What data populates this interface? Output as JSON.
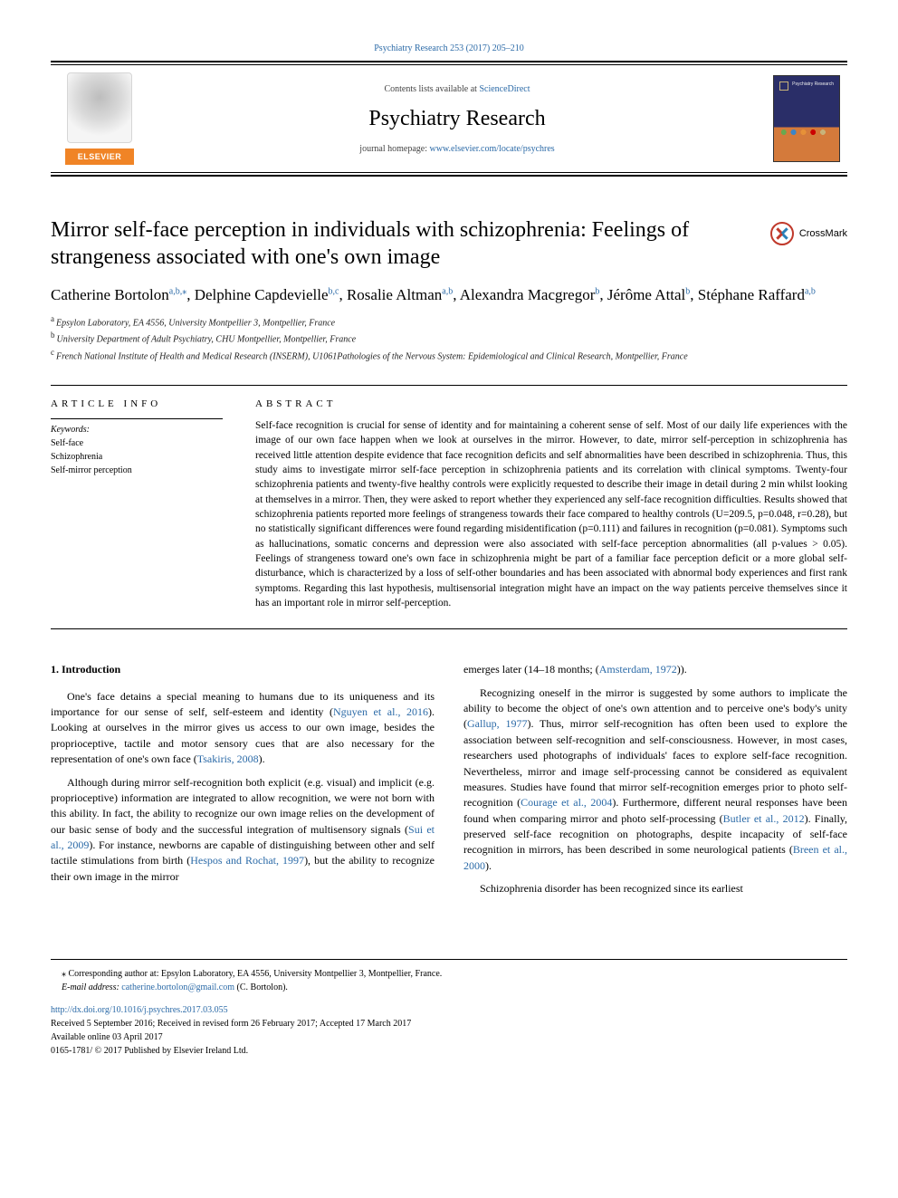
{
  "top_citation": "Psychiatry Research 253 (2017) 205–210",
  "header": {
    "elsevier_label": "ELSEVIER",
    "contents_prefix": "Contents lists available at ",
    "contents_link_text": "ScienceDirect",
    "journal_title": "Psychiatry Research",
    "homepage_prefix": "journal homepage: ",
    "homepage_url": "www.elsevier.com/locate/psychres",
    "cover_text": "Psychiatry Research"
  },
  "crossmark_label": "CrossMark",
  "article_title": "Mirror self-face perception in individuals with schizophrenia: Feelings of strangeness associated with one's own image",
  "authors_html": "Catherine Bortolon<sup class=\"affil-sup\">a,b,⁎</sup>, Delphine Capdevielle<sup class=\"affil-sup\">b,c</sup>, Rosalie Altman<sup class=\"affil-sup\">a,b</sup>, Alexandra Macgregor<sup class=\"affil-sup\">b</sup>, Jérôme Attal<sup class=\"affil-sup\">b</sup>, Stéphane Raffard<sup class=\"affil-sup\">a,b</sup>",
  "affiliations": [
    {
      "key": "a",
      "text": "Epsylon Laboratory, EA 4556, University Montpellier 3, Montpellier, France"
    },
    {
      "key": "b",
      "text": "University Department of Adult Psychiatry, CHU Montpellier, Montpellier, France"
    },
    {
      "key": "c",
      "text": "French National Institute of Health and Medical Research (INSERM), U1061Pathologies of the Nervous System: Epidemiological and Clinical Research, Montpellier, France"
    }
  ],
  "info_label": "ARTICLE INFO",
  "abstract_label": "ABSTRACT",
  "keywords_label": "Keywords:",
  "keywords": [
    "Self-face",
    "Schizophrenia",
    "Self-mirror perception"
  ],
  "abstract": "Self-face recognition is crucial for sense of identity and for maintaining a coherent sense of self. Most of our daily life experiences with the image of our own face happen when we look at ourselves in the mirror. However, to date, mirror self-perception in schizophrenia has received little attention despite evidence that face recognition deficits and self abnormalities have been described in schizophrenia. Thus, this study aims to investigate mirror self-face perception in schizophrenia patients and its correlation with clinical symptoms. Twenty-four schizophrenia patients and twenty-five healthy controls were explicitly requested to describe their image in detail during 2 min whilst looking at themselves in a mirror. Then, they were asked to report whether they experienced any self-face recognition difficulties. Results showed that schizophrenia patients reported more feelings of strangeness towards their face compared to healthy controls (U=209.5, p=0.048, r=0.28), but no statistically significant differences were found regarding misidentification (p=0.111) and failures in recognition (p=0.081). Symptoms such as hallucinations, somatic concerns and depression were also associated with self-face perception abnormalities (all p-values > 0.05). Feelings of strangeness toward one's own face in schizophrenia might be part of a familiar face perception deficit or a more global self-disturbance, which is characterized by a loss of self-other boundaries and has been associated with abnormal body experiences and first rank symptoms. Regarding this last hypothesis, multisensorial integration might have an impact on the way patients perceive themselves since it has an important role in mirror self-perception.",
  "intro_heading": "1. Introduction",
  "body_left_paragraphs_html": [
    "One's face detains a special meaning to humans due to its uniqueness and its importance for our sense of self, self-esteem and identity (<a href=\"#\" data-name=\"cite-nguyen\" data-interactable=\"true\">Nguyen et al., 2016</a>). Looking at ourselves in the mirror gives us access to our own image, besides the proprioceptive, tactile and motor sensory cues that are also necessary for the representation of one's own face (<a href=\"#\" data-name=\"cite-tsakiris\" data-interactable=\"true\">Tsakiris, 2008</a>).",
    "Although during mirror self-recognition both explicit (e.g. visual) and implicit (e.g. proprioceptive) information are integrated to allow recognition, we were not born with this ability. In fact, the ability to recognize our own image relies on the development of our basic sense of body and the successful integration of multisensory signals (<a href=\"#\" data-name=\"cite-sui\" data-interactable=\"true\">Sui et al., 2009</a>). For instance, newborns are capable of distinguishing between other and self tactile stimulations from birth (<a href=\"#\" data-name=\"cite-hespos\" data-interactable=\"true\">Hespos and Rochat, 1997</a>), but the ability to recognize their own image in the mirror"
  ],
  "body_right_paragraphs_html": [
    "emerges later (14–18 months; (<a href=\"#\" data-name=\"cite-amsterdam\" data-interactable=\"true\">Amsterdam, 1972</a>)).",
    "Recognizing oneself in the mirror is suggested by some authors to implicate the ability to become the object of one's own attention and to perceive one's body's unity (<a href=\"#\" data-name=\"cite-gallup\" data-interactable=\"true\">Gallup, 1977</a>). Thus, mirror self-recognition has often been used to explore the association between self-recognition and self-consciousness. However, in most cases, researchers used photographs of individuals' faces to explore self-face recognition. Nevertheless, mirror and image self-processing cannot be considered as equivalent measures. Studies have found that mirror self-recognition emerges prior to photo self-recognition (<a href=\"#\" data-name=\"cite-courage\" data-interactable=\"true\">Courage et al., 2004</a>). Furthermore, different neural responses have been found when comparing mirror and photo self-processing (<a href=\"#\" data-name=\"cite-butler\" data-interactable=\"true\">Butler et al., 2012</a>). Finally, preserved self-face recognition on photographs, despite incapacity of self-face recognition in mirrors, has been described in some neurological patients (<a href=\"#\" data-name=\"cite-breen\" data-interactable=\"true\">Breen et al., 2000</a>).",
    "Schizophrenia disorder has been recognized since its earliest"
  ],
  "footer": {
    "corr_prefix": "⁎ Corresponding author at: Epsylon Laboratory, EA 4556, University Montpellier 3, Montpellier, France.",
    "email_label": "E-mail address: ",
    "email": "catherine.bortolon@gmail.com",
    "email_suffix": " (C. Bortolon).",
    "doi": "http://dx.doi.org/10.1016/j.psychres.2017.03.055",
    "history": "Received 5 September 2016; Received in revised form 26 February 2017; Accepted 17 March 2017",
    "online": "Available online 03 April 2017",
    "copyright": "0165-1781/ © 2017 Published by Elsevier Ireland Ltd."
  },
  "colors": {
    "link": "#2b6aa7",
    "elsevier_orange": "#f08426",
    "text": "#000000",
    "background": "#ffffff"
  }
}
